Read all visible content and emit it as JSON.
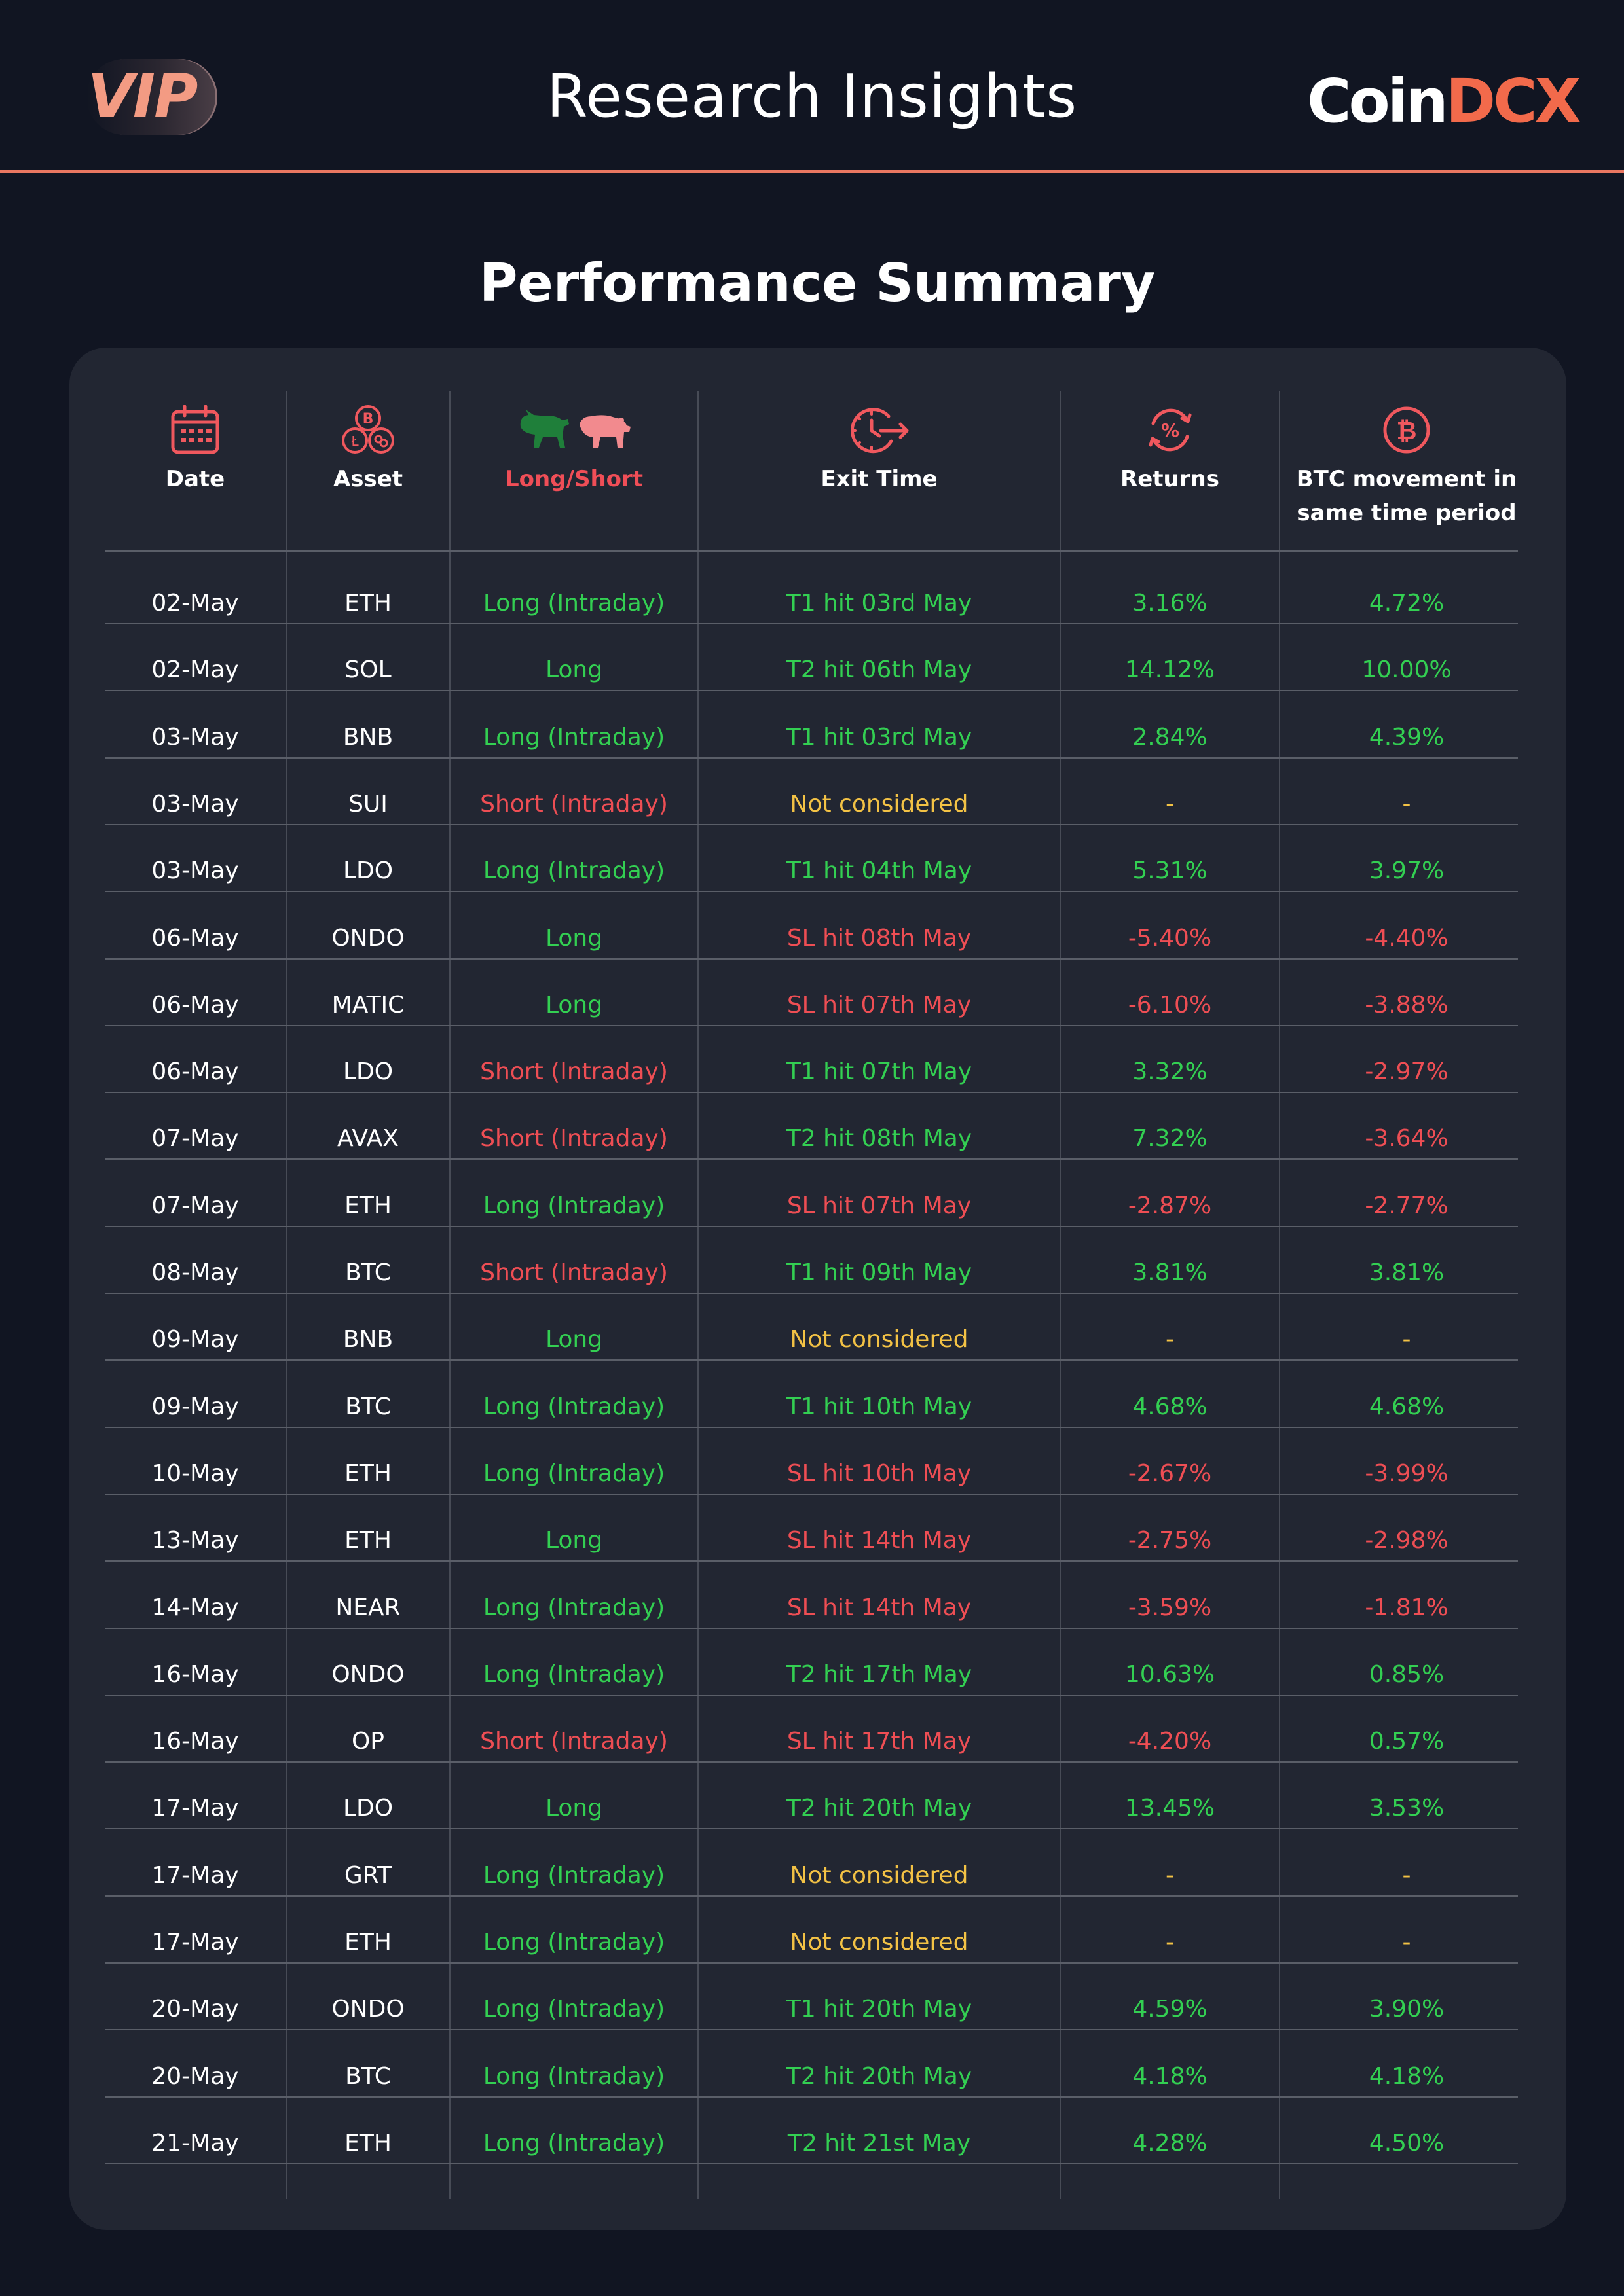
{
  "header": {
    "badge": "VIP",
    "title": "Research Insights",
    "logo_part1": "Coin",
    "logo_part2": "DCX"
  },
  "section_title": "Performance Summary",
  "table": {
    "columns": [
      {
        "label": "Date",
        "icon": "calendar-icon"
      },
      {
        "label": "Asset",
        "icon": "coins-icon"
      },
      {
        "label": "Long/Short",
        "icon": "bull-bear-icon"
      },
      {
        "label": "Exit Time",
        "icon": "clock-exit-icon"
      },
      {
        "label": "Returns",
        "icon": "percent-cycle-icon"
      },
      {
        "label": "BTC movement in same time period",
        "icon": "bitcoin-icon"
      }
    ],
    "rows": [
      {
        "date": "02-May",
        "asset": "ETH",
        "side": "Long (Intraday)",
        "exit": "T1 hit 03rd May",
        "returns": "3.16%",
        "btc": "4.72%"
      },
      {
        "date": "02-May",
        "asset": "SOL",
        "side": "Long",
        "exit": "T2 hit 06th May",
        "returns": "14.12%",
        "btc": "10.00%"
      },
      {
        "date": "03-May",
        "asset": "BNB",
        "side": "Long (Intraday)",
        "exit": "T1 hit 03rd May",
        "returns": "2.84%",
        "btc": "4.39%"
      },
      {
        "date": "03-May",
        "asset": "SUI",
        "side": "Short (Intraday)",
        "exit": "Not considered",
        "returns": "-",
        "btc": "-"
      },
      {
        "date": "03-May",
        "asset": "LDO",
        "side": "Long (Intraday)",
        "exit": "T1 hit 04th May",
        "returns": "5.31%",
        "btc": "3.97%"
      },
      {
        "date": "06-May",
        "asset": "ONDO",
        "side": "Long",
        "exit": "SL hit 08th May",
        "returns": "-5.40%",
        "btc": "-4.40%"
      },
      {
        "date": "06-May",
        "asset": "MATIC",
        "side": "Long",
        "exit": "SL hit 07th May",
        "returns": "-6.10%",
        "btc": "-3.88%"
      },
      {
        "date": "06-May",
        "asset": "LDO",
        "side": "Short (Intraday)",
        "exit": "T1 hit 07th May",
        "returns": "3.32%",
        "btc": "-2.97%"
      },
      {
        "date": "07-May",
        "asset": "AVAX",
        "side": "Short (Intraday)",
        "exit": "T2 hit 08th May",
        "returns": "7.32%",
        "btc": "-3.64%"
      },
      {
        "date": "07-May",
        "asset": "ETH",
        "side": "Long (Intraday)",
        "exit": "SL hit 07th May",
        "returns": "-2.87%",
        "btc": "-2.77%"
      },
      {
        "date": "08-May",
        "asset": "BTC",
        "side": "Short (Intraday)",
        "exit": "T1 hit 09th May",
        "returns": "3.81%",
        "btc": "3.81%"
      },
      {
        "date": "09-May",
        "asset": "BNB",
        "side": "Long",
        "exit": "Not considered",
        "returns": "-",
        "btc": "-"
      },
      {
        "date": "09-May",
        "asset": "BTC",
        "side": "Long (Intraday)",
        "exit": "T1 hit 10th May",
        "returns": "4.68%",
        "btc": "4.68%"
      },
      {
        "date": "10-May",
        "asset": "ETH",
        "side": "Long (Intraday)",
        "exit": "SL hit 10th May",
        "returns": "-2.67%",
        "btc": "-3.99%"
      },
      {
        "date": "13-May",
        "asset": "ETH",
        "side": "Long",
        "exit": "SL hit 14th May",
        "returns": "-2.75%",
        "btc": "-2.98%"
      },
      {
        "date": "14-May",
        "asset": "NEAR",
        "side": "Long (Intraday)",
        "exit": "SL hit 14th May",
        "returns": "-3.59%",
        "btc": "-1.81%"
      },
      {
        "date": "16-May",
        "asset": "ONDO",
        "side": "Long (Intraday)",
        "exit": "T2 hit 17th May",
        "returns": "10.63%",
        "btc": "0.85%"
      },
      {
        "date": "16-May",
        "asset": "OP",
        "side": "Short (Intraday)",
        "exit": "SL hit 17th May",
        "returns": "-4.20%",
        "btc": "0.57%"
      },
      {
        "date": "17-May",
        "asset": "LDO",
        "side": "Long",
        "exit": "T2 hit 20th May",
        "returns": "13.45%",
        "btc": "3.53%"
      },
      {
        "date": "17-May",
        "asset": "GRT",
        "side": "Long (Intraday)",
        "exit": "Not considered",
        "returns": "-",
        "btc": "-"
      },
      {
        "date": "17-May",
        "asset": "ETH",
        "side": "Long (Intraday)",
        "exit": "Not considered",
        "returns": "-",
        "btc": "-"
      },
      {
        "date": "20-May",
        "asset": "ONDO",
        "side": "Long (Intraday)",
        "exit": "T1 hit 20th May",
        "returns": "4.59%",
        "btc": "3.90%"
      },
      {
        "date": "20-May",
        "asset": "BTC",
        "side": "Long (Intraday)",
        "exit": "T2 hit 20th May",
        "returns": "4.18%",
        "btc": "4.18%"
      },
      {
        "date": "21-May",
        "asset": "ETH",
        "side": "Long (Intraday)",
        "exit": "T2 hit 21st May",
        "returns": "4.28%",
        "btc": "4.50%"
      }
    ]
  },
  "colors": {
    "background": "#111522",
    "card": "#222632",
    "accent": "#ea7761",
    "positive": "#33cf52",
    "negative": "#ee4e54",
    "neutral": "#f3c245"
  }
}
